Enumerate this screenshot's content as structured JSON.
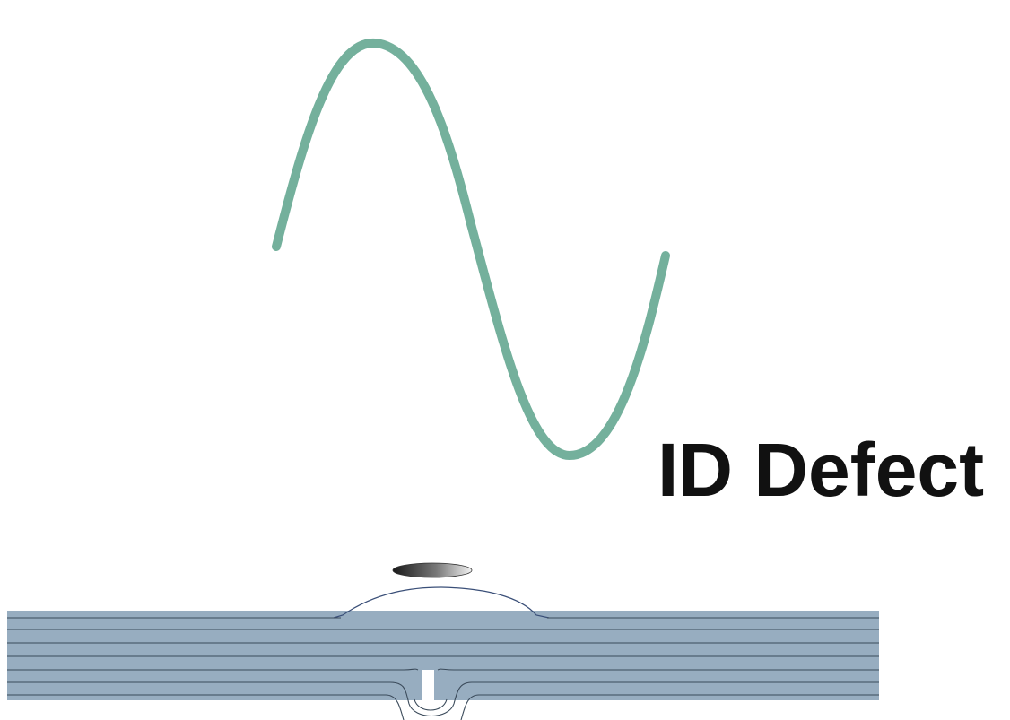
{
  "label": "ID Defect"
}
